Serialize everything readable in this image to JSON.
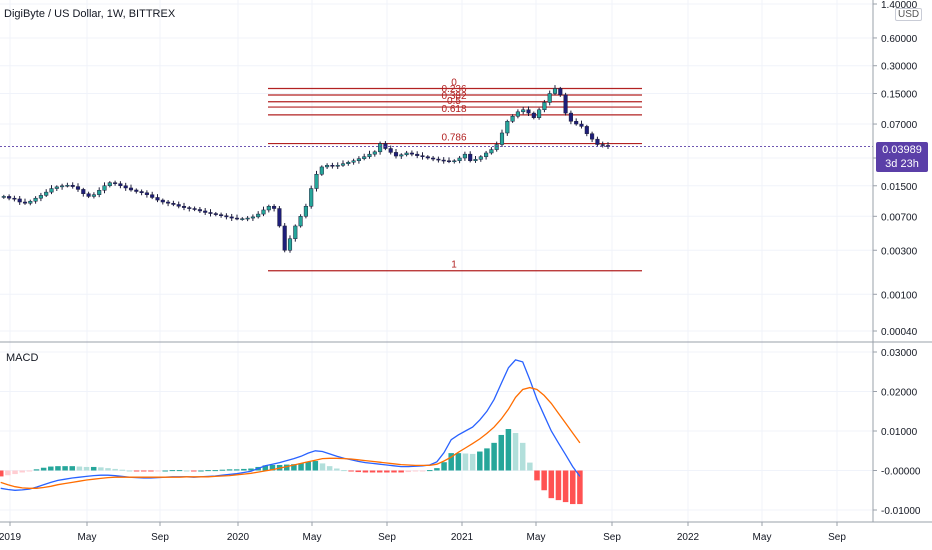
{
  "header": {
    "title": "DigiByte / US Dollar, 1W, BITTREX",
    "currency_badge": "USD",
    "last_price": "0.03989",
    "countdown": "3d 23h"
  },
  "macd_panel": {
    "label": "MACD"
  },
  "colors": {
    "bull": "#26a69a",
    "bear_candle": "#1e1e7a",
    "fib": "#b22222",
    "macd_line": "#2962ff",
    "signal_line": "#ff6d00",
    "hist_up_strong": "#26a69a",
    "hist_up_weak": "#b2dfdb",
    "hist_down_strong": "#ff5252",
    "hist_down_weak": "#ffcdd2",
    "price_tag": "#5b3fa8"
  },
  "chart_data": [
    {
      "type": "candlestick",
      "scale": "log",
      "y_ticks": [
        "1.40000",
        "0.60000",
        "0.30000",
        "0.15000",
        "0.07000",
        "0.03000",
        "0.01500",
        "0.00700",
        "0.00300",
        "0.00100",
        "0.00040"
      ],
      "x_ticks": [
        "2019",
        "May",
        "Sep",
        "2020",
        "May",
        "Sep",
        "2021",
        "May",
        "Sep",
        "2022",
        "May",
        "Sep"
      ],
      "fibonacci": {
        "high": 0.17,
        "low": 0.0018,
        "levels": [
          {
            "label": "0",
            "value": 0.17
          },
          {
            "label": "0.236",
            "value": 0.1445
          },
          {
            "label": "0.382",
            "value": 0.122
          },
          {
            "label": "0.5",
            "value": 0.107
          },
          {
            "label": "0.618",
            "value": 0.088
          },
          {
            "label": "0.786",
            "value": 0.043
          },
          {
            "label": "1",
            "value": 0.0018
          }
        ]
      },
      "weekly_closes_approx": [
        0.0115,
        0.011,
        0.0108,
        0.01,
        0.0097,
        0.0102,
        0.011,
        0.0118,
        0.0128,
        0.014,
        0.0146,
        0.015,
        0.0152,
        0.0147,
        0.0137,
        0.0123,
        0.0115,
        0.012,
        0.0134,
        0.015,
        0.0162,
        0.0158,
        0.015,
        0.0142,
        0.0135,
        0.013,
        0.0126,
        0.012,
        0.0112,
        0.0105,
        0.01,
        0.0097,
        0.0094,
        0.009,
        0.0087,
        0.0085,
        0.0083,
        0.008,
        0.0077,
        0.0075,
        0.0073,
        0.0071,
        0.0069,
        0.0067,
        0.0066,
        0.0066,
        0.0067,
        0.0069,
        0.0074,
        0.0082,
        0.009,
        0.0085,
        0.0055,
        0.003,
        0.004,
        0.0055,
        0.007,
        0.009,
        0.014,
        0.02,
        0.024,
        0.025,
        0.0245,
        0.025,
        0.026,
        0.027,
        0.028,
        0.0295,
        0.031,
        0.033,
        0.035,
        0.043,
        0.038,
        0.0345,
        0.0315,
        0.0325,
        0.034,
        0.033,
        0.0318,
        0.031,
        0.03,
        0.0292,
        0.0285,
        0.028,
        0.0275,
        0.028,
        0.03,
        0.033,
        0.028,
        0.029,
        0.031,
        0.034,
        0.037,
        0.042,
        0.056,
        0.075,
        0.085,
        0.095,
        0.1,
        0.092,
        0.082,
        0.1,
        0.12,
        0.15,
        0.17,
        0.145,
        0.092,
        0.075,
        0.07,
        0.066,
        0.055,
        0.048,
        0.042,
        0.041,
        0.0399
      ],
      "last_price": 0.03989
    },
    {
      "type": "line",
      "name": "MACD",
      "y_ticks": [
        "0.03000",
        "0.02000",
        "0.01000",
        "-0.00000",
        "-0.01000"
      ],
      "series": [
        {
          "values": [
            -0.0045,
            -0.0048,
            -0.005,
            -0.0049,
            -0.0047,
            -0.0042,
            -0.0036,
            -0.003,
            -0.0025,
            -0.0022,
            -0.0019,
            -0.0017,
            -0.0015,
            -0.0013,
            -0.0012,
            -0.0012,
            -0.0013,
            -0.0015,
            -0.0017,
            -0.0018,
            -0.0019,
            -0.0019,
            -0.0018,
            -0.0017,
            -0.0016,
            -0.0016,
            -0.0016,
            -0.0017,
            -0.0016,
            -0.0015,
            -0.0014,
            -0.0012,
            -0.001,
            -0.0008,
            -0.0005,
            -0.0002,
            0.0005,
            0.0012,
            0.0016,
            0.002,
            0.0025,
            0.003,
            0.0036,
            0.0044,
            0.005,
            0.0048,
            0.0042,
            0.0036,
            0.0031,
            0.0027,
            0.0023,
            0.002,
            0.0018,
            0.0016,
            0.0014,
            0.0012,
            0.001,
            0.001,
            0.0011,
            0.0012,
            0.0014,
            0.0022,
            0.0045,
            0.0078,
            0.009,
            0.01,
            0.011,
            0.0128,
            0.015,
            0.018,
            0.022,
            0.026,
            0.028,
            0.0275,
            0.023,
            0.018,
            0.014,
            0.01,
            0.007,
            0.004,
            0.001,
            -0.0015
          ]
        },
        {
          "values": [
            -0.003,
            -0.0036,
            -0.0041,
            -0.0044,
            -0.0045,
            -0.0045,
            -0.0043,
            -0.004,
            -0.0036,
            -0.0033,
            -0.003,
            -0.0027,
            -0.0024,
            -0.0022,
            -0.002,
            -0.0018,
            -0.0017,
            -0.0017,
            -0.0017,
            -0.0017,
            -0.0017,
            -0.0017,
            -0.0017,
            -0.0017,
            -0.0017,
            -0.0017,
            -0.0016,
            -0.0016,
            -0.0016,
            -0.0016,
            -0.0015,
            -0.0014,
            -0.0013,
            -0.0011,
            -0.0009,
            -0.0007,
            -0.0004,
            -0.0001,
            0.0002,
            0.0006,
            0.001,
            0.0014,
            0.0018,
            0.0022,
            0.0026,
            0.003,
            0.0031,
            0.0031,
            0.003,
            0.0029,
            0.0027,
            0.0025,
            0.0023,
            0.0021,
            0.0019,
            0.0017,
            0.0015,
            0.0014,
            0.0013,
            0.0013,
            0.0013,
            0.0016,
            0.0024,
            0.0034,
            0.0046,
            0.0057,
            0.0068,
            0.008,
            0.0094,
            0.011,
            0.013,
            0.0155,
            0.0185,
            0.0205,
            0.021,
            0.0205,
            0.019,
            0.017,
            0.0145,
            0.012,
            0.0095,
            0.007
          ]
        }
      ],
      "histogram": [
        -0.0015,
        -0.0012,
        -0.0009,
        -0.0005,
        -0.0002,
        0.0003,
        0.0007,
        0.001,
        0.0011,
        0.0011,
        0.0011,
        0.001,
        0.0009,
        0.0009,
        0.0008,
        0.0006,
        0.0004,
        0.0002,
        0.0,
        -0.0001,
        -0.0002,
        -0.0002,
        -0.0001,
        0.0,
        0.0001,
        0.0001,
        0.0,
        -0.0001,
        0.0,
        0.0001,
        0.0001,
        0.0002,
        0.0003,
        0.0003,
        0.0004,
        0.0005,
        0.0009,
        0.0013,
        0.0014,
        0.0014,
        0.0015,
        0.0016,
        0.0018,
        0.0022,
        0.0024,
        0.0018,
        0.0011,
        0.0005,
        0.0001,
        -0.0002,
        -0.0004,
        -0.0005,
        -0.0005,
        -0.0005,
        -0.0005,
        -0.0005,
        -0.0005,
        -0.0004,
        -0.0002,
        -0.0001,
        0.0001,
        0.0006,
        0.0021,
        0.0044,
        0.0044,
        0.0043,
        0.0042,
        0.0048,
        0.0056,
        0.007,
        0.009,
        0.0105,
        0.0095,
        0.007,
        0.002,
        -0.0025,
        -0.005,
        -0.007,
        -0.0075,
        -0.008,
        -0.0085,
        -0.0085
      ]
    }
  ]
}
